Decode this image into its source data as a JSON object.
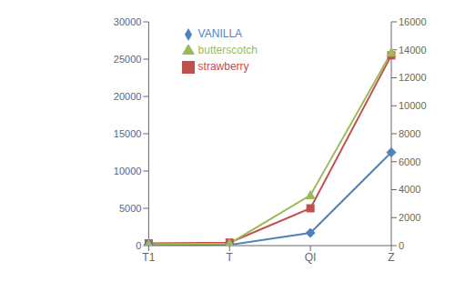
{
  "chart_data": {
    "type": "line",
    "categories": [
      "T1",
      "T",
      "QI",
      "Z"
    ],
    "series": [
      {
        "name": "strawberry",
        "color": "#c0504d",
        "marker": "square",
        "values": [
          300,
          400,
          5000,
          25500
        ]
      },
      {
        "name": "VANILLA",
        "color": "#4f81bd",
        "marker": "diamond",
        "values": [
          150,
          100,
          1700,
          12500
        ]
      },
      {
        "name": "butterscotch",
        "color": "#9bbb59",
        "marker": "triangle",
        "axis": "y2",
        "values": [
          100,
          150,
          3600,
          13800
        ]
      }
    ],
    "ylim": [
      0,
      30000
    ],
    "yticks": [
      0,
      5000,
      10000,
      15000,
      20000,
      25000,
      30000
    ],
    "y2lim": [
      0,
      16000
    ],
    "y2ticks": [
      0,
      2000,
      4000,
      6000,
      8000,
      10000,
      12000,
      14000,
      16000
    ],
    "grid": false,
    "legend": "upper center"
  }
}
